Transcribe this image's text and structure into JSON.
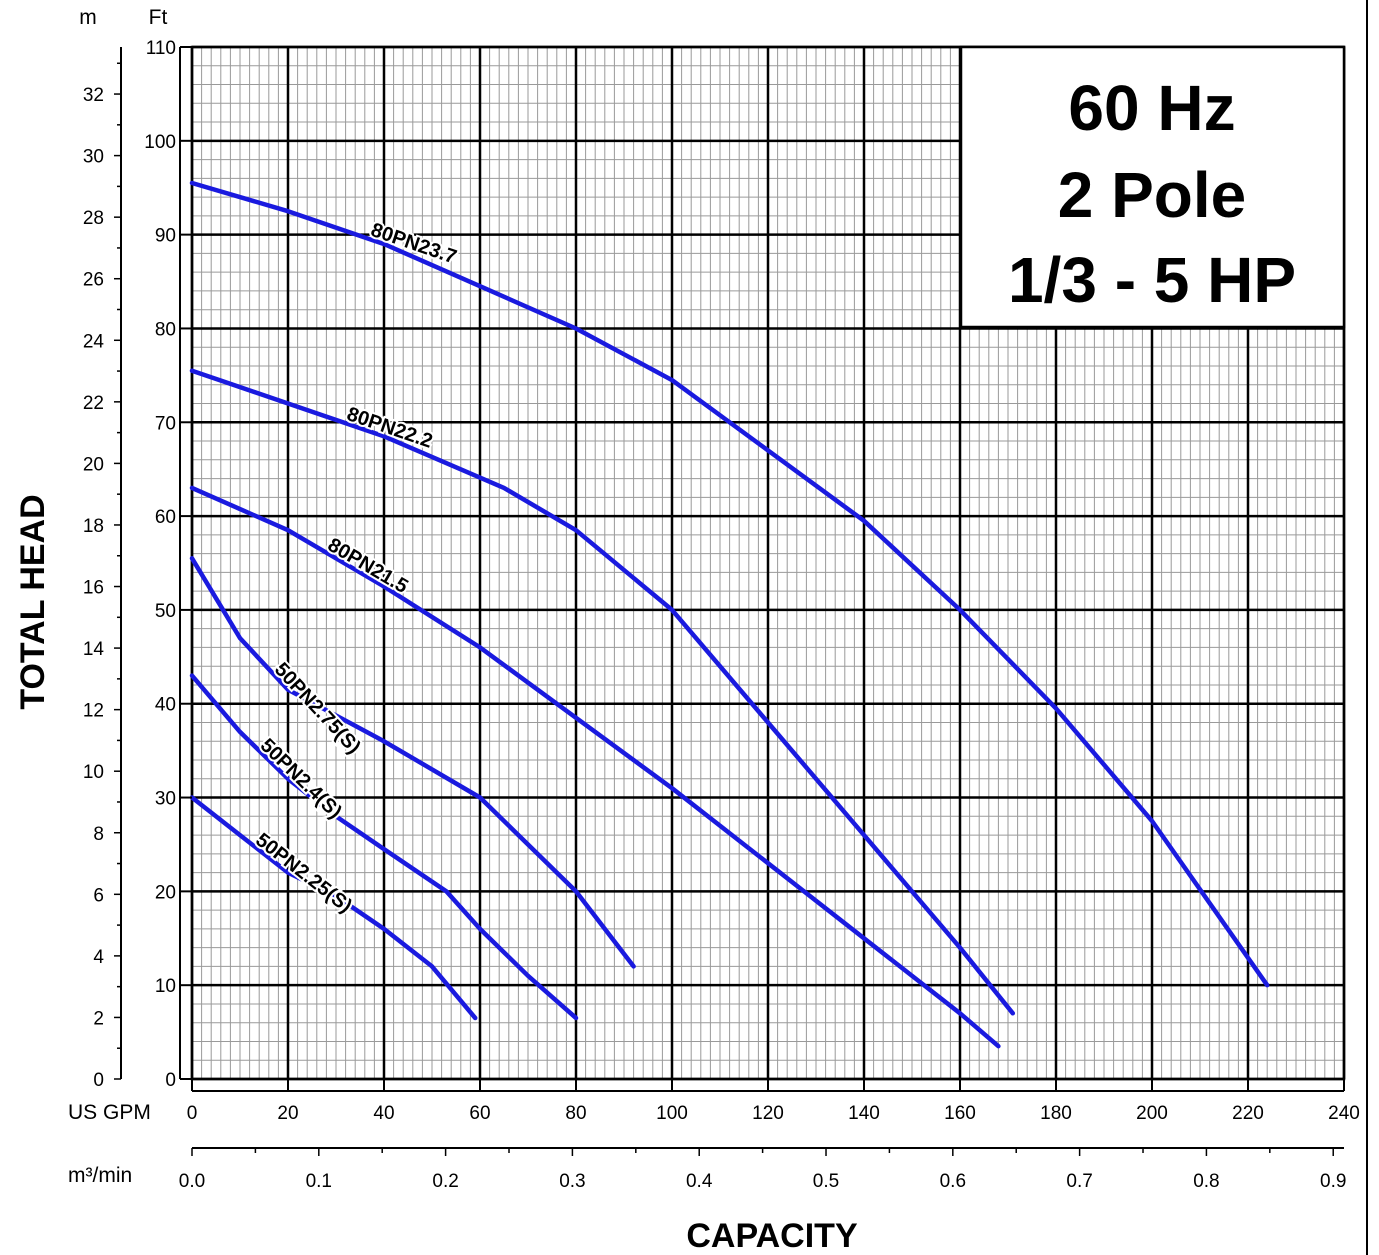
{
  "chart_data": {
    "type": "line",
    "title_box": [
      "60 Hz",
      "2 Pole",
      "1/3 - 5 HP"
    ],
    "xlabel": "CAPACITY",
    "ylabel": "TOTAL HEAD",
    "x_unit_primary": "US GPM",
    "x_unit_secondary": "m³/min",
    "y_unit_primary": "Ft",
    "y_unit_secondary": "m",
    "xlim": [
      0,
      240
    ],
    "ylim": [
      0,
      110
    ],
    "x_ticks": [
      "0",
      "20",
      "40",
      "60",
      "80",
      "100",
      "120",
      "140",
      "160",
      "180",
      "200",
      "220",
      "240"
    ],
    "x2_ticks": [
      "0.0",
      "0.1",
      "0.2",
      "0.3",
      "0.4",
      "0.5",
      "0.6",
      "0.7",
      "0.8",
      "0.9"
    ],
    "y_ticks": [
      "0",
      "10",
      "20",
      "30",
      "40",
      "50",
      "60",
      "70",
      "80",
      "90",
      "100",
      "110"
    ],
    "y2_ticks": [
      "0",
      "2",
      "4",
      "6",
      "8",
      "10",
      "12",
      "14",
      "16",
      "18",
      "20",
      "22",
      "24",
      "26",
      "28",
      "30",
      "32"
    ],
    "grid": true,
    "line_color": "#1a1adf",
    "series": [
      {
        "name": "80PN23.7",
        "x": [
          0,
          20,
          40,
          60,
          80,
          100,
          120,
          140,
          160,
          180,
          200,
          224
        ],
        "y": [
          95.5,
          92.5,
          89,
          84.5,
          80,
          74.5,
          67,
          59.5,
          50,
          39.5,
          27.5,
          10
        ]
      },
      {
        "name": "80PN22.2",
        "x": [
          0,
          20,
          40,
          65,
          80,
          100,
          120,
          140,
          160,
          171
        ],
        "y": [
          75.5,
          72,
          68.5,
          63,
          58.5,
          50,
          38,
          26,
          14,
          7
        ]
      },
      {
        "name": "80PN21.5",
        "x": [
          0,
          20,
          40,
          60,
          80,
          100,
          120,
          140,
          160,
          168
        ],
        "y": [
          63,
          58.5,
          52.5,
          46,
          38.5,
          31,
          23,
          15,
          7,
          3.5
        ]
      },
      {
        "name": "50PN2.75(S)",
        "x": [
          0,
          10,
          20,
          40,
          60,
          70,
          80,
          92
        ],
        "y": [
          55.5,
          47,
          41.5,
          36,
          30,
          25,
          20,
          12
        ]
      },
      {
        "name": "50PN2.4(S)",
        "x": [
          0,
          10,
          20,
          30,
          40,
          53,
          60,
          70,
          80
        ],
        "y": [
          43,
          37,
          32,
          28,
          24.5,
          20,
          16,
          11,
          6.5
        ]
      },
      {
        "name": "50PN2.25(S)",
        "x": [
          0,
          10,
          20,
          30,
          40,
          50,
          59
        ],
        "y": [
          30,
          26,
          22,
          19.5,
          16,
          12,
          6.5
        ]
      }
    ]
  }
}
